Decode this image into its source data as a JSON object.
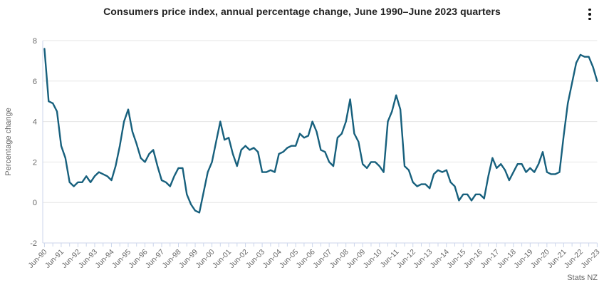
{
  "header": {
    "title": "Consumers price index, annual percentage change, June 1990–June 2023 quarters",
    "menu_icon": "kebab-menu-icon"
  },
  "credits": "Stats NZ",
  "colors": {
    "line": "#17607d",
    "grid": "#e6e6e6",
    "axis": "#ccd6eb",
    "label": "#666666",
    "title": "#222222"
  },
  "chart_data": {
    "type": "line",
    "title": "Consumers price index, annual percentage change, June 1990–June 2023 quarters",
    "xlabel": "",
    "ylabel": "Percentage change",
    "ylim": [
      -2,
      8
    ],
    "y_ticks": [
      -2,
      0,
      2,
      4,
      6,
      8
    ],
    "grid": "horizontal",
    "legend": "none",
    "frequency": "quarterly",
    "start_quarter": "Jun-90",
    "end_quarter": "Jun-23",
    "x_tick_labels": [
      "Jun-90",
      "Jun-91",
      "Jun-92",
      "Jun-93",
      "Jun-94",
      "Jun-95",
      "Jun-96",
      "Jun-97",
      "Jun-98",
      "Jun-99",
      "Jun-00",
      "Jun-01",
      "Jun-02",
      "Jun-03",
      "Jun-04",
      "Jun-05",
      "Jun-06",
      "Jun-07",
      "Jun-08",
      "Jun-09",
      "Jun-10",
      "Jun-11",
      "Jun-12",
      "Jun-13",
      "Jun-14",
      "Jun-15",
      "Jun-16",
      "Jun-17",
      "Jun-18",
      "Jun-19",
      "Jun-20",
      "Jun-21",
      "Jun-22",
      "Jun-23"
    ],
    "major_tick_every_quarters": 4,
    "minor_tick_every_quarters": 2,
    "series": [
      {
        "name": "Consumers price index, annual percentage change",
        "values": [
          7.6,
          5.0,
          4.9,
          4.5,
          2.8,
          2.2,
          1.0,
          0.8,
          1.0,
          1.0,
          1.3,
          1.0,
          1.3,
          1.5,
          1.4,
          1.3,
          1.1,
          1.8,
          2.8,
          4.0,
          4.6,
          3.5,
          2.9,
          2.2,
          2.0,
          2.4,
          2.6,
          1.8,
          1.1,
          1.0,
          0.8,
          1.3,
          1.7,
          1.7,
          0.4,
          -0.1,
          -0.4,
          -0.5,
          0.5,
          1.5,
          2.0,
          3.0,
          4.0,
          3.1,
          3.2,
          2.4,
          1.8,
          2.6,
          2.8,
          2.6,
          2.7,
          2.5,
          1.5,
          1.5,
          1.6,
          1.5,
          2.4,
          2.5,
          2.7,
          2.8,
          2.8,
          3.4,
          3.2,
          3.3,
          4.0,
          3.5,
          2.6,
          2.5,
          2.0,
          1.8,
          3.2,
          3.4,
          4.0,
          5.1,
          3.4,
          3.0,
          1.9,
          1.7,
          2.0,
          2.0,
          1.8,
          1.5,
          4.0,
          4.5,
          5.3,
          4.6,
          1.8,
          1.6,
          1.0,
          0.8,
          0.9,
          0.9,
          0.7,
          1.4,
          1.6,
          1.5,
          1.6,
          1.0,
          0.8,
          0.1,
          0.4,
          0.4,
          0.1,
          0.4,
          0.4,
          0.2,
          1.3,
          2.2,
          1.7,
          1.9,
          1.6,
          1.1,
          1.5,
          1.9,
          1.9,
          1.5,
          1.7,
          1.5,
          1.9,
          2.5,
          1.5,
          1.4,
          1.4,
          1.5,
          3.3,
          4.9,
          5.9,
          6.9,
          7.3,
          7.2,
          7.2,
          6.7,
          6.0
        ]
      }
    ]
  }
}
